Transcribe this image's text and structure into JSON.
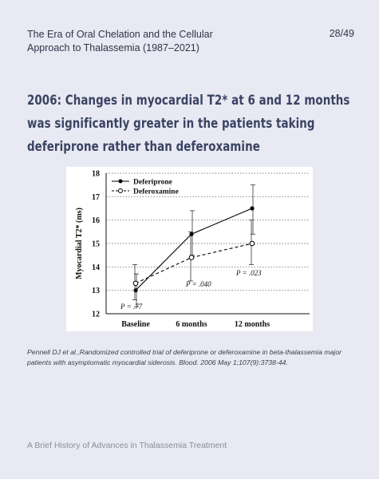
{
  "header": {
    "book_title_line1": "The Era of Oral Chelation and the Cellular",
    "book_title_line2": "Approach to Thalassemia  (1987–2021)",
    "page_number": "28/49"
  },
  "slide": {
    "title_lines": [
      "2006: Changes in myocardial T2* at 6 and 12 months",
      "was significantly greater in the patients taking",
      "deferiprone rather than deferoxamine"
    ]
  },
  "citation": "Pennell DJ et al.,Randomized controlled trial of deferiprone or deferoxamine in beta-thalassemia major patients with asymptomatic myocardial siderosis. Blood. 2006 May 1;107(9):3738-44.",
  "footer": "A Brief History of Advances in Thalassemia Treatment",
  "chart_data": {
    "type": "line",
    "categories": [
      "Baseline",
      "6 months",
      "12 months"
    ],
    "ylabel": "Myocardial T2* (ms)",
    "ylim": [
      12,
      18
    ],
    "yticks": [
      "12",
      "13",
      "14",
      "15",
      "16",
      "17",
      "18"
    ],
    "grid": "horizontal dotted",
    "legend_position": "top-left",
    "series": [
      {
        "name": "Deferiprone",
        "values": [
          13.0,
          15.4,
          16.5
        ],
        "err_low": [
          12.3,
          14.5,
          15.4
        ],
        "err_high": [
          13.7,
          16.4,
          17.5
        ],
        "marker": "filled-diamond",
        "line": "solid",
        "color": "#000000"
      },
      {
        "name": "Deferoxamine",
        "values": [
          13.3,
          14.4,
          15.0
        ],
        "err_low": [
          12.6,
          13.4,
          14.1
        ],
        "err_high": [
          14.1,
          15.5,
          16.0
        ],
        "marker": "open-circle",
        "line": "dashed",
        "color": "#000000"
      }
    ],
    "annotations": [
      "P = .77",
      "P = .040",
      "P = .023"
    ]
  }
}
